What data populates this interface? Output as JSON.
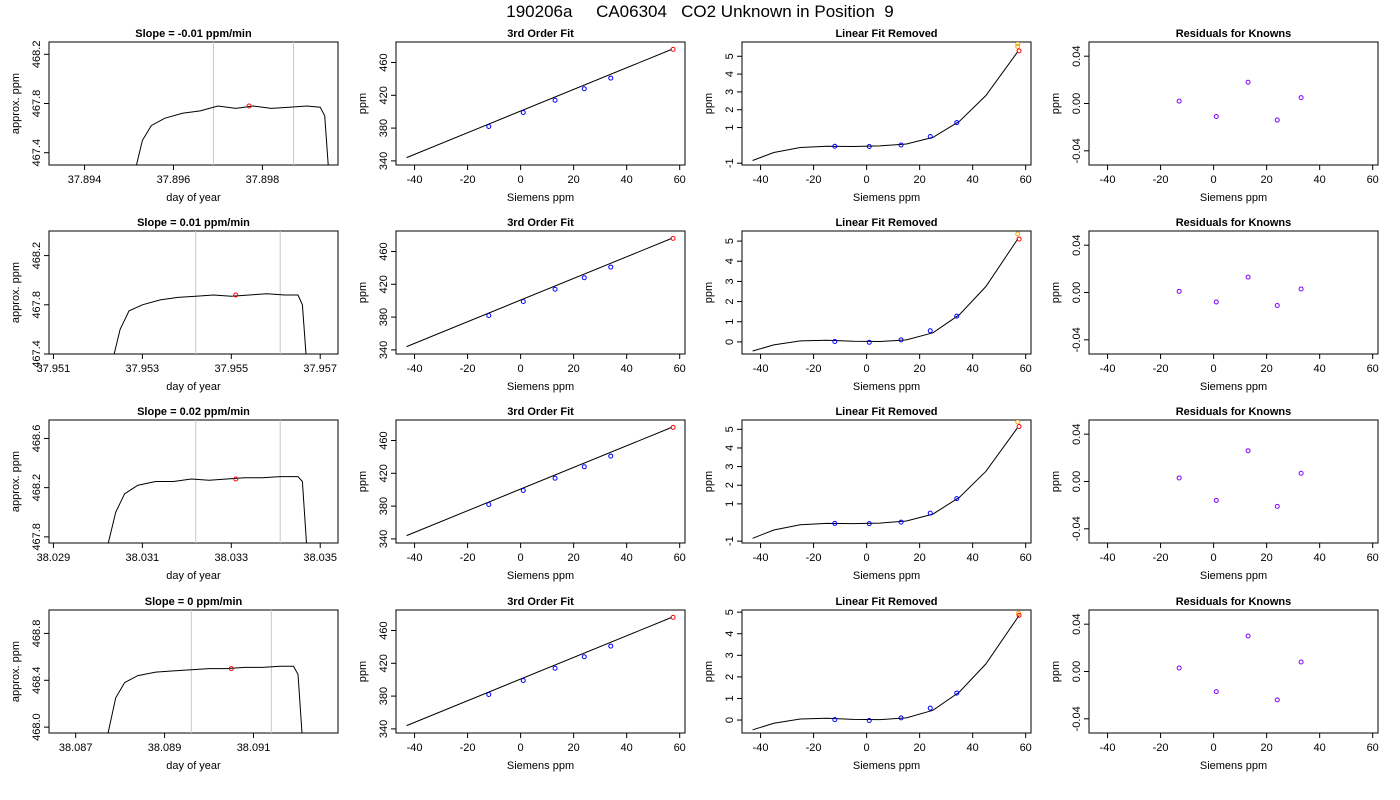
{
  "title": "190206a     CA06304   CO2 Unknown in Position  9",
  "colors": {
    "axis": "#000000",
    "line": "#000000",
    "gridline": "#c8c8c8",
    "unknown_point": "#ff0000",
    "known_point": "#0000ff",
    "residual_point": "#8000ff",
    "flag_point": "#ffa500"
  },
  "chart_data": [
    {
      "type": "line",
      "row": 1,
      "title": "Slope =  -0.01  ppm/min",
      "xlabel": "day of year",
      "ylabel": "approx. ppm",
      "xlim": [
        37.8932,
        37.8997
      ],
      "ylim": [
        467.3,
        468.3
      ],
      "xticks": [
        "37.894",
        "37.896",
        "37.898"
      ],
      "yticks": [
        "467.4",
        "467.8",
        "468.2"
      ],
      "vlines": [
        37.8969,
        37.8987
      ],
      "marker": [
        37.8977,
        467.78
      ],
      "trace": [
        [
          37.8951,
          467.2
        ],
        [
          37.8953,
          467.5
        ],
        [
          37.8955,
          467.62
        ],
        [
          37.8958,
          467.68
        ],
        [
          37.8962,
          467.72
        ],
        [
          37.8966,
          467.74
        ],
        [
          37.897,
          467.78
        ],
        [
          37.8974,
          467.76
        ],
        [
          37.8978,
          467.78
        ],
        [
          37.8982,
          467.76
        ],
        [
          37.8986,
          467.77
        ],
        [
          37.899,
          467.78
        ],
        [
          37.8993,
          467.77
        ],
        [
          37.8994,
          467.7
        ],
        [
          37.8995,
          467.2
        ]
      ]
    },
    {
      "type": "scatter",
      "row": 1,
      "title": "3rd Order Fit",
      "xlabel": "Siemens ppm",
      "ylabel": "ppm",
      "xlim": [
        -47,
        62
      ],
      "ylim": [
        335,
        485
      ],
      "xticks": [
        "-40",
        "-20",
        "0",
        "20",
        "40",
        "60"
      ],
      "yticks": [
        "340",
        "380",
        "420",
        "460"
      ],
      "fit_line": [
        [
          -43,
          344
        ],
        [
          57,
          476
        ]
      ],
      "known_points": [
        [
          -12,
          382
        ],
        [
          1,
          399
        ],
        [
          13,
          414
        ],
        [
          24,
          428
        ],
        [
          34,
          441
        ]
      ],
      "unknown_point": [
        57.5,
        476
      ]
    },
    {
      "type": "scatter",
      "row": 1,
      "title": "Linear Fit Removed",
      "xlabel": "Siemens ppm",
      "ylabel": "ppm",
      "xlim": [
        -47,
        62
      ],
      "ylim": [
        -1.1,
        5.8
      ],
      "xticks": [
        "-40",
        "-20",
        "0",
        "20",
        "40",
        "60"
      ],
      "yticks": [
        "-1",
        "1",
        "2",
        "3",
        "4",
        "5"
      ],
      "curve": [
        [
          -43,
          -0.85
        ],
        [
          -35,
          -0.4
        ],
        [
          -25,
          -0.12
        ],
        [
          -15,
          -0.05
        ],
        [
          -5,
          -0.06
        ],
        [
          5,
          -0.03
        ],
        [
          15,
          0.08
        ],
        [
          25,
          0.45
        ],
        [
          35,
          1.35
        ],
        [
          45,
          2.8
        ],
        [
          57,
          5.25
        ]
      ],
      "known_points": [
        [
          -12,
          -0.05
        ],
        [
          1,
          -0.06
        ],
        [
          13,
          0.02
        ],
        [
          24,
          0.5
        ],
        [
          34,
          1.28
        ]
      ],
      "unknown_point": [
        57.5,
        5.3
      ],
      "flag_points": [
        [
          57,
          5.55
        ],
        [
          57,
          5.7
        ]
      ]
    },
    {
      "type": "scatter",
      "row": 1,
      "title": "Residuals for Knowns",
      "xlabel": "Siemens ppm",
      "ylabel": "ppm",
      "xlim": [
        -47,
        62
      ],
      "ylim": [
        -0.052,
        0.052
      ],
      "xticks": [
        "-40",
        "-20",
        "0",
        "20",
        "40",
        "60"
      ],
      "yticks": [
        "-0.04",
        "0.00",
        "0.04"
      ],
      "points": [
        [
          -13,
          0.002
        ],
        [
          1,
          -0.011
        ],
        [
          13,
          0.018
        ],
        [
          24,
          -0.014
        ],
        [
          33,
          0.005
        ]
      ]
    },
    {
      "type": "line",
      "row": 2,
      "title": "Slope =  0.01  ppm/min",
      "xlabel": "day of year",
      "ylabel": "approx. ppm",
      "xlim": [
        37.9509,
        37.9574
      ],
      "ylim": [
        467.4,
        468.4
      ],
      "xticks": [
        "37.951",
        "37.953",
        "37.955",
        "37.957"
      ],
      "yticks": [
        "467.4",
        "467.8",
        "468.2"
      ],
      "vlines": [
        37.9542,
        37.9561
      ],
      "marker": [
        37.9551,
        467.88
      ],
      "trace": [
        [
          37.9523,
          467.3
        ],
        [
          37.9525,
          467.6
        ],
        [
          37.9527,
          467.75
        ],
        [
          37.953,
          467.8
        ],
        [
          37.9534,
          467.84
        ],
        [
          37.9538,
          467.86
        ],
        [
          37.9542,
          467.87
        ],
        [
          37.9546,
          467.88
        ],
        [
          37.955,
          467.87
        ],
        [
          37.9554,
          467.88
        ],
        [
          37.9558,
          467.89
        ],
        [
          37.9562,
          467.88
        ],
        [
          37.9565,
          467.88
        ],
        [
          37.9566,
          467.8
        ],
        [
          37.9567,
          467.3
        ]
      ]
    },
    {
      "type": "scatter",
      "row": 2,
      "title": "3rd Order Fit",
      "xlabel": "Siemens ppm",
      "ylabel": "ppm",
      "xlim": [
        -47,
        62
      ],
      "ylim": [
        335,
        485
      ],
      "xticks": [
        "-40",
        "-20",
        "0",
        "20",
        "40",
        "60"
      ],
      "yticks": [
        "340",
        "380",
        "420",
        "460"
      ],
      "fit_line": [
        [
          -43,
          344
        ],
        [
          57,
          476
        ]
      ],
      "known_points": [
        [
          -12,
          382
        ],
        [
          1,
          399
        ],
        [
          13,
          414
        ],
        [
          24,
          428
        ],
        [
          34,
          441
        ]
      ],
      "unknown_point": [
        57.5,
        476
      ]
    },
    {
      "type": "scatter",
      "row": 2,
      "title": "Linear Fit Removed",
      "xlabel": "Siemens ppm",
      "ylabel": "ppm",
      "xlim": [
        -47,
        62
      ],
      "ylim": [
        -0.6,
        5.5
      ],
      "xticks": [
        "-40",
        "-20",
        "0",
        "20",
        "40",
        "60"
      ],
      "yticks": [
        "0",
        "1",
        "2",
        "3",
        "4",
        "5"
      ],
      "curve": [
        [
          -43,
          -0.45
        ],
        [
          -35,
          -0.15
        ],
        [
          -25,
          0.05
        ],
        [
          -15,
          0.08
        ],
        [
          -5,
          0.03
        ],
        [
          5,
          0.02
        ],
        [
          15,
          0.1
        ],
        [
          25,
          0.45
        ],
        [
          35,
          1.35
        ],
        [
          45,
          2.75
        ],
        [
          57,
          5.1
        ]
      ],
      "known_points": [
        [
          -12,
          0.02
        ],
        [
          1,
          -0.02
        ],
        [
          13,
          0.1
        ],
        [
          24,
          0.55
        ],
        [
          34,
          1.28
        ]
      ],
      "unknown_point": [
        57.5,
        5.1
      ],
      "flag_points": [
        [
          57,
          5.35
        ]
      ]
    },
    {
      "type": "scatter",
      "row": 2,
      "title": "Residuals for Knowns",
      "xlabel": "Siemens ppm",
      "ylabel": "ppm",
      "xlim": [
        -47,
        62
      ],
      "ylim": [
        -0.052,
        0.052
      ],
      "xticks": [
        "-40",
        "-20",
        "0",
        "20",
        "40",
        "60"
      ],
      "yticks": [
        "-0.04",
        "0.00",
        "0.04"
      ],
      "points": [
        [
          -13,
          0.001
        ],
        [
          1,
          -0.008
        ],
        [
          13,
          0.013
        ],
        [
          24,
          -0.011
        ],
        [
          33,
          0.003
        ]
      ]
    },
    {
      "type": "line",
      "row": 3,
      "title": "Slope =  0.02  ppm/min",
      "xlabel": "day of year",
      "ylabel": "approx. ppm",
      "xlim": [
        38.0289,
        38.0354
      ],
      "ylim": [
        467.75,
        468.75
      ],
      "xticks": [
        "38.029",
        "38.031",
        "38.033",
        "38.035"
      ],
      "yticks": [
        "467.8",
        "468.2",
        "468.6"
      ],
      "vlines": [
        38.0322,
        38.0341
      ],
      "marker": [
        38.0331,
        468.27
      ],
      "trace": [
        [
          38.0302,
          467.7
        ],
        [
          38.0304,
          468.0
        ],
        [
          38.0306,
          468.15
        ],
        [
          38.0309,
          468.22
        ],
        [
          38.0313,
          468.25
        ],
        [
          38.0317,
          468.25
        ],
        [
          38.0321,
          468.27
        ],
        [
          38.0325,
          468.26
        ],
        [
          38.0329,
          468.27
        ],
        [
          38.0333,
          468.28
        ],
        [
          38.0337,
          468.28
        ],
        [
          38.0341,
          468.29
        ],
        [
          38.0345,
          468.29
        ],
        [
          38.0346,
          468.25
        ],
        [
          38.0347,
          467.7
        ]
      ]
    },
    {
      "type": "scatter",
      "row": 3,
      "title": "3rd Order Fit",
      "xlabel": "Siemens ppm",
      "ylabel": "ppm",
      "xlim": [
        -47,
        62
      ],
      "ylim": [
        335,
        485
      ],
      "xticks": [
        "-40",
        "-20",
        "0",
        "20",
        "40",
        "60"
      ],
      "yticks": [
        "340",
        "380",
        "420",
        "460"
      ],
      "fit_line": [
        [
          -43,
          344
        ],
        [
          57,
          476
        ]
      ],
      "known_points": [
        [
          -12,
          382
        ],
        [
          1,
          399
        ],
        [
          13,
          414
        ],
        [
          24,
          428
        ],
        [
          34,
          441
        ]
      ],
      "unknown_point": [
        57.5,
        476
      ]
    },
    {
      "type": "scatter",
      "row": 3,
      "title": "Linear Fit Removed",
      "xlabel": "Siemens ppm",
      "ylabel": "ppm",
      "xlim": [
        -47,
        62
      ],
      "ylim": [
        -1.1,
        5.5
      ],
      "xticks": [
        "-40",
        "-20",
        "0",
        "20",
        "40",
        "60"
      ],
      "yticks": [
        "-1",
        "1",
        "2",
        "3",
        "4",
        "5"
      ],
      "curve": [
        [
          -43,
          -0.85
        ],
        [
          -35,
          -0.4
        ],
        [
          -25,
          -0.12
        ],
        [
          -15,
          -0.05
        ],
        [
          -5,
          -0.06
        ],
        [
          5,
          -0.03
        ],
        [
          15,
          0.08
        ],
        [
          25,
          0.45
        ],
        [
          35,
          1.35
        ],
        [
          45,
          2.75
        ],
        [
          57,
          5.1
        ]
      ],
      "known_points": [
        [
          -12,
          -0.05
        ],
        [
          1,
          -0.06
        ],
        [
          13,
          0.02
        ],
        [
          24,
          0.5
        ],
        [
          34,
          1.28
        ]
      ],
      "unknown_point": [
        57.5,
        5.15
      ],
      "flag_points": [
        [
          57,
          5.4
        ]
      ]
    },
    {
      "type": "scatter",
      "row": 3,
      "title": "Residuals for Knowns",
      "xlabel": "Siemens ppm",
      "ylabel": "ppm",
      "xlim": [
        -47,
        62
      ],
      "ylim": [
        -0.052,
        0.052
      ],
      "xticks": [
        "-40",
        "-20",
        "0",
        "20",
        "40",
        "60"
      ],
      "yticks": [
        "-0.04",
        "0.00",
        "0.04"
      ],
      "points": [
        [
          -13,
          0.003
        ],
        [
          1,
          -0.016
        ],
        [
          13,
          0.026
        ],
        [
          24,
          -0.021
        ],
        [
          33,
          0.007
        ]
      ]
    },
    {
      "type": "line",
      "row": 4,
      "title": "Slope =  0  ppm/min",
      "xlabel": "day of year",
      "ylabel": "approx. ppm",
      "xlim": [
        38.0864,
        38.0929
      ],
      "ylim": [
        467.95,
        469.0
      ],
      "xticks": [
        "38.087",
        "38.089",
        "38.091"
      ],
      "yticks": [
        "468.0",
        "468.4",
        "468.8"
      ],
      "vlines": [
        38.0896,
        38.0914
      ],
      "marker": [
        38.0905,
        468.5
      ],
      "trace": [
        [
          38.0877,
          467.9
        ],
        [
          38.0879,
          468.25
        ],
        [
          38.0881,
          468.38
        ],
        [
          38.0884,
          468.44
        ],
        [
          38.0888,
          468.47
        ],
        [
          38.0892,
          468.48
        ],
        [
          38.0896,
          468.49
        ],
        [
          38.09,
          468.5
        ],
        [
          38.0904,
          468.5
        ],
        [
          38.0908,
          468.51
        ],
        [
          38.0912,
          468.51
        ],
        [
          38.0916,
          468.52
        ],
        [
          38.0919,
          468.52
        ],
        [
          38.092,
          468.45
        ],
        [
          38.0921,
          467.9
        ]
      ]
    },
    {
      "type": "scatter",
      "row": 4,
      "title": "3rd Order Fit",
      "xlabel": "Siemens ppm",
      "ylabel": "ppm",
      "xlim": [
        -47,
        62
      ],
      "ylim": [
        335,
        485
      ],
      "xticks": [
        "-40",
        "-20",
        "0",
        "20",
        "40",
        "60"
      ],
      "yticks": [
        "340",
        "380",
        "420",
        "460"
      ],
      "fit_line": [
        [
          -43,
          344
        ],
        [
          57,
          476
        ]
      ],
      "known_points": [
        [
          -12,
          382
        ],
        [
          1,
          399
        ],
        [
          13,
          414
        ],
        [
          24,
          428
        ],
        [
          34,
          441
        ]
      ],
      "unknown_point": [
        57.5,
        476
      ]
    },
    {
      "type": "scatter",
      "row": 4,
      "title": "Linear Fit Removed",
      "xlabel": "Siemens ppm",
      "ylabel": "ppm",
      "xlim": [
        -47,
        62
      ],
      "ylim": [
        -0.6,
        5.1
      ],
      "xticks": [
        "-40",
        "-20",
        "0",
        "20",
        "40",
        "60"
      ],
      "yticks": [
        "0",
        "1",
        "2",
        "3",
        "4",
        "5"
      ],
      "curve": [
        [
          -43,
          -0.45
        ],
        [
          -35,
          -0.15
        ],
        [
          -25,
          0.05
        ],
        [
          -15,
          0.08
        ],
        [
          -5,
          0.03
        ],
        [
          5,
          0.02
        ],
        [
          15,
          0.1
        ],
        [
          25,
          0.45
        ],
        [
          35,
          1.3
        ],
        [
          45,
          2.6
        ],
        [
          57.5,
          4.85
        ]
      ],
      "known_points": [
        [
          -12,
          0.02
        ],
        [
          1,
          -0.02
        ],
        [
          13,
          0.1
        ],
        [
          24,
          0.55
        ],
        [
          34,
          1.25
        ]
      ],
      "unknown_point": [
        57.5,
        4.85
      ],
      "flag_points": [
        [
          57.3,
          4.95
        ]
      ]
    },
    {
      "type": "scatter",
      "row": 4,
      "title": "Residuals for Knowns",
      "xlabel": "Siemens ppm",
      "ylabel": "ppm",
      "xlim": [
        -47,
        62
      ],
      "ylim": [
        -0.052,
        0.052
      ],
      "xticks": [
        "-40",
        "-20",
        "0",
        "20",
        "40",
        "60"
      ],
      "yticks": [
        "-0.04",
        "0.00",
        "0.04"
      ],
      "points": [
        [
          -13,
          0.003
        ],
        [
          1,
          -0.017
        ],
        [
          13,
          0.03
        ],
        [
          24,
          -0.024
        ],
        [
          33,
          0.008
        ]
      ]
    }
  ]
}
